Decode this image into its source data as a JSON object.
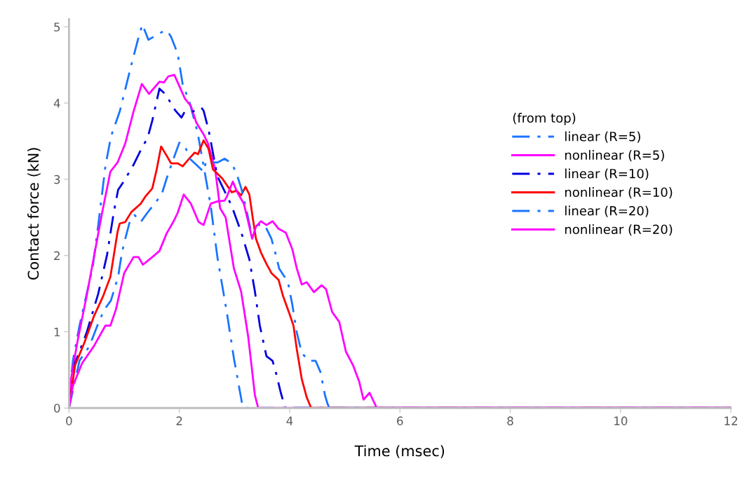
{
  "chart_data": {
    "type": "line",
    "xlabel": "Time (msec)",
    "ylabel": "Contact force (kN)",
    "legend_title": "(from top)",
    "legend": "right",
    "grid": false,
    "xlim": [
      0,
      12
    ],
    "ylim": [
      0,
      5.1
    ],
    "xticks": [
      0,
      2,
      4,
      6,
      8,
      10,
      12
    ],
    "yticks": [
      0,
      1,
      2,
      3,
      4,
      5
    ],
    "marker": "none",
    "series": [
      {
        "name": "linear (R=5)",
        "color": "#1a75ff",
        "line_style": "dashdot",
        "x": [
          0,
          0.02,
          0.07,
          0.19,
          0.43,
          0.53,
          0.66,
          0.76,
          0.92,
          1.13,
          1.26,
          1.33,
          1.44,
          1.68,
          1.78,
          1.85,
          1.97,
          2.06,
          2.19,
          2.33,
          2.57,
          2.69,
          2.86,
          2.99,
          3.14,
          3.17,
          12
        ],
        "values": [
          0,
          0.26,
          0.62,
          1.08,
          1.85,
          2.4,
          3.17,
          3.56,
          3.89,
          4.5,
          4.86,
          5.03,
          4.83,
          4.93,
          4.95,
          4.87,
          4.65,
          4.25,
          4.0,
          3.62,
          2.65,
          1.98,
          1.26,
          0.65,
          0.05,
          0,
          0
        ]
      },
      {
        "name": "nonlinear (R=5)",
        "color": "#ff00ff",
        "line_style": "solid",
        "x": [
          0,
          0.03,
          0.15,
          0.32,
          0.6,
          0.75,
          0.88,
          1.02,
          1.17,
          1.32,
          1.45,
          1.64,
          1.72,
          1.8,
          1.91,
          2.02,
          2.1,
          2.21,
          2.31,
          2.44,
          2.52,
          2.65,
          2.74,
          2.84,
          2.99,
          3.12,
          3.25,
          3.37,
          3.43,
          12
        ],
        "values": [
          0,
          0.35,
          0.86,
          1.47,
          2.56,
          3.1,
          3.22,
          3.47,
          3.89,
          4.25,
          4.12,
          4.28,
          4.27,
          4.35,
          4.37,
          4.19,
          4.06,
          3.96,
          3.74,
          3.59,
          3.47,
          3.13,
          2.62,
          2.5,
          1.83,
          1.53,
          0.93,
          0.17,
          0,
          0
        ]
      },
      {
        "name": "linear (R=10)",
        "color": "#0000e0",
        "line_style": "dashdot",
        "x": [
          0,
          0.11,
          0.32,
          0.53,
          0.69,
          0.81,
          0.89,
          1.0,
          1.17,
          1.34,
          1.42,
          1.51,
          1.64,
          1.77,
          1.85,
          1.93,
          2.04,
          2.1,
          2.25,
          2.4,
          2.44,
          2.53,
          2.69,
          2.95,
          3.12,
          3.27,
          3.37,
          3.46,
          3.58,
          3.69,
          3.75,
          3.84,
          3.92,
          12
        ],
        "values": [
          0,
          0.59,
          0.99,
          1.5,
          2.01,
          2.56,
          2.86,
          2.98,
          3.19,
          3.44,
          3.53,
          3.77,
          4.19,
          4.1,
          3.99,
          3.9,
          3.81,
          3.89,
          3.89,
          3.94,
          3.9,
          3.65,
          3.04,
          2.65,
          2.31,
          1.95,
          1.53,
          1.08,
          0.68,
          0.62,
          0.47,
          0.2,
          0,
          0
        ]
      },
      {
        "name": "nonlinear (R=10)",
        "color": "#ff0000",
        "line_style": "solid",
        "x": [
          0,
          0.11,
          0.28,
          0.45,
          0.62,
          0.75,
          0.88,
          0.92,
          1.02,
          1.13,
          1.3,
          1.38,
          1.51,
          1.59,
          1.67,
          1.77,
          1.85,
          1.97,
          2.06,
          2.19,
          2.28,
          2.34,
          2.44,
          2.53,
          2.61,
          2.78,
          2.95,
          3.04,
          3.12,
          3.2,
          3.27,
          3.33,
          3.39,
          3.48,
          3.58,
          3.67,
          3.8,
          3.88,
          4.0,
          4.07,
          4.13,
          4.22,
          4.31,
          4.39,
          12
        ],
        "values": [
          0,
          0.56,
          0.86,
          1.2,
          1.47,
          1.72,
          2.31,
          2.42,
          2.44,
          2.57,
          2.68,
          2.77,
          2.88,
          3.13,
          3.43,
          3.31,
          3.21,
          3.21,
          3.17,
          3.28,
          3.35,
          3.33,
          3.51,
          3.4,
          3.13,
          3.01,
          2.83,
          2.85,
          2.79,
          2.9,
          2.8,
          2.5,
          2.22,
          2.04,
          1.89,
          1.77,
          1.68,
          1.47,
          1.23,
          1.08,
          0.77,
          0.38,
          0.14,
          0,
          0
        ]
      },
      {
        "name": "linear (R=20)",
        "color": "#1a75ff",
        "line_style": "dashdot",
        "x": [
          0,
          0.19,
          0.37,
          0.53,
          0.64,
          0.76,
          0.89,
          0.96,
          1.02,
          1.1,
          1.19,
          1.3,
          1.42,
          1.68,
          1.77,
          1.89,
          2.0,
          2.1,
          2.19,
          2.31,
          2.44,
          2.48,
          2.61,
          2.69,
          2.82,
          2.95,
          3.04,
          3.12,
          3.2,
          3.29,
          3.42,
          3.55,
          3.67,
          3.75,
          3.81,
          3.97,
          4.05,
          4.13,
          4.22,
          4.35,
          4.47,
          4.56,
          4.64,
          4.69,
          4.72,
          12
        ],
        "values": [
          0,
          0.62,
          0.81,
          1.11,
          1.29,
          1.41,
          1.72,
          2.04,
          2.22,
          2.44,
          2.53,
          2.44,
          2.56,
          2.8,
          3.01,
          3.26,
          3.48,
          3.44,
          3.27,
          3.19,
          3.1,
          3.22,
          3.22,
          3.22,
          3.27,
          3.21,
          3.07,
          2.89,
          2.65,
          2.35,
          2.4,
          2.4,
          2.22,
          2.01,
          1.83,
          1.65,
          1.35,
          0.99,
          0.72,
          0.62,
          0.62,
          0.47,
          0.17,
          0.05,
          0,
          0
        ]
      },
      {
        "name": "nonlinear (R=20)",
        "color": "#ff00ff",
        "line_style": "solid",
        "x": [
          0,
          0.07,
          0.24,
          0.45,
          0.66,
          0.75,
          0.85,
          1.0,
          1.17,
          1.26,
          1.34,
          1.51,
          1.64,
          1.77,
          1.89,
          1.97,
          2.08,
          2.21,
          2.35,
          2.44,
          2.57,
          2.69,
          2.82,
          2.86,
          2.97,
          3.05,
          3.17,
          3.25,
          3.32,
          3.39,
          3.48,
          3.58,
          3.69,
          3.8,
          3.93,
          4.05,
          4.13,
          4.22,
          4.31,
          4.44,
          4.58,
          4.66,
          4.77,
          4.9,
          5.02,
          5.15,
          5.26,
          5.34,
          5.45,
          5.58,
          12
        ],
        "values": [
          0,
          0.29,
          0.59,
          0.81,
          1.08,
          1.08,
          1.29,
          1.77,
          1.98,
          1.98,
          1.88,
          1.98,
          2.06,
          2.29,
          2.44,
          2.56,
          2.8,
          2.68,
          2.44,
          2.4,
          2.68,
          2.71,
          2.72,
          2.77,
          2.97,
          2.83,
          2.68,
          2.44,
          2.22,
          2.38,
          2.45,
          2.4,
          2.45,
          2.35,
          2.3,
          2.08,
          1.83,
          1.62,
          1.65,
          1.52,
          1.61,
          1.56,
          1.26,
          1.13,
          0.74,
          0.56,
          0.35,
          0.11,
          0.2,
          0,
          0
        ]
      }
    ]
  }
}
